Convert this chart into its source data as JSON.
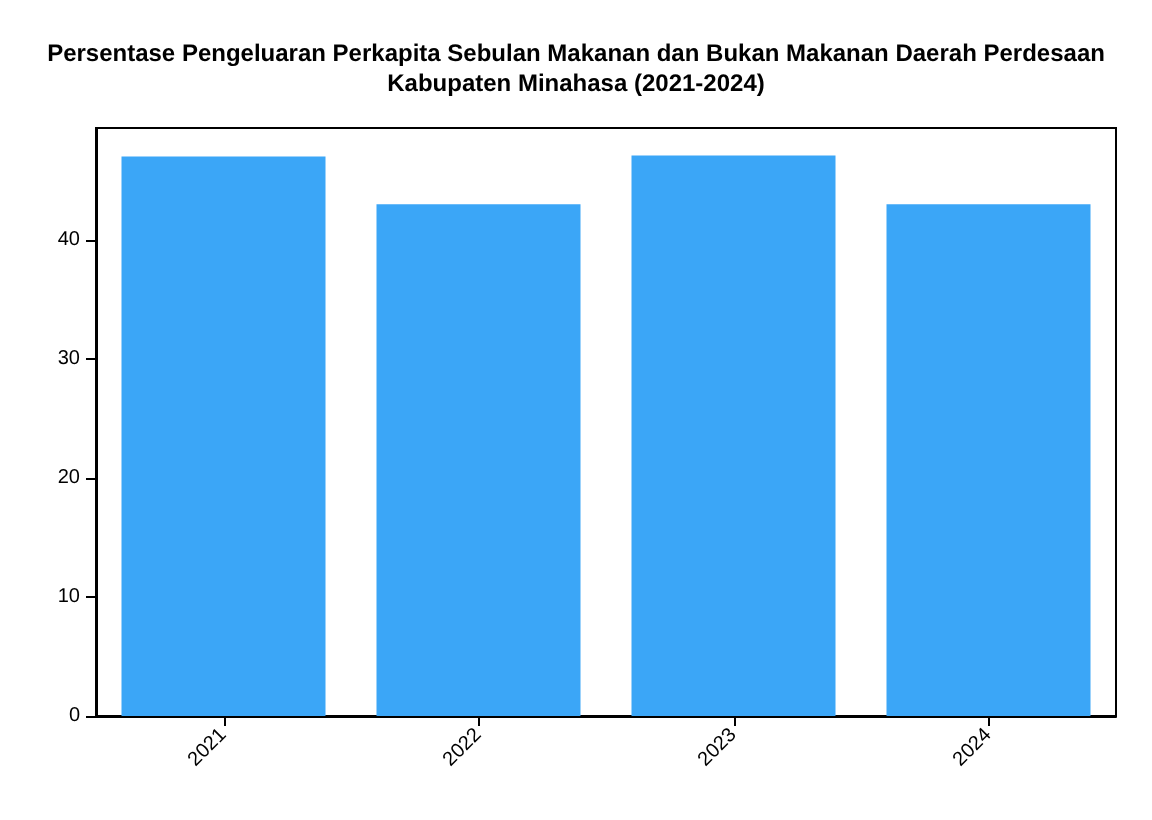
{
  "chart_data": {
    "type": "bar",
    "title": "Persentase Pengeluaran Perkapita Sebulan Makanan dan Bukan Makanan Daerah Perdesaan\nKabupaten Minahasa (2021-2024)",
    "categories": [
      "2021",
      "2022",
      "2023",
      "2024"
    ],
    "values": [
      47.0,
      43.0,
      47.1,
      43.0
    ],
    "color": "#3ba6f7",
    "ylim": [
      0,
      49.4
    ],
    "yticks": [
      0,
      10,
      20,
      30,
      40
    ],
    "grid": false
  }
}
